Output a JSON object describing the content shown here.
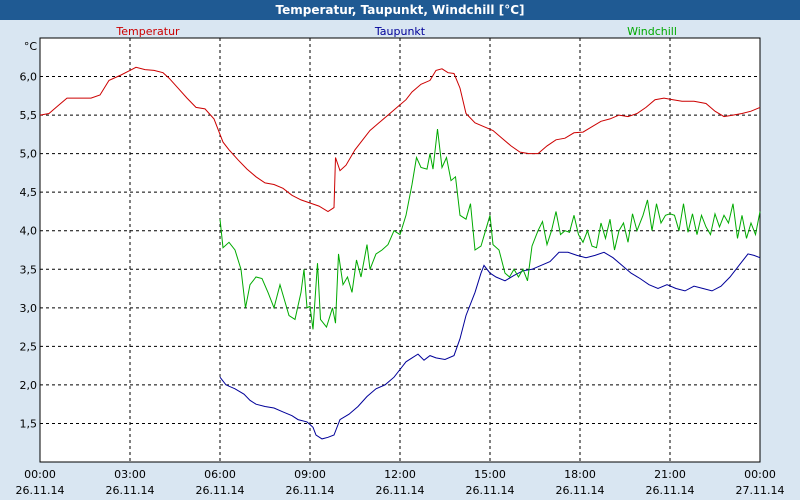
{
  "window": {
    "title": "Temperatur, Taupunkt, Windchill [°C]"
  },
  "colors": {
    "temperatur": "#cc0000",
    "taupunkt": "#000099",
    "windchill": "#00aa00",
    "background": "#d9e6f2",
    "plot": "#ffffff",
    "titlebar": "#1f5a93"
  },
  "chart_data": {
    "type": "line",
    "title": "Temperatur, Taupunkt, Windchill [°C]",
    "ylabel": "°C",
    "xlabel": "",
    "xlim": [
      0,
      24
    ],
    "ylim": [
      1.0,
      6.5
    ],
    "grid": true,
    "yticks": [
      1.5,
      2.0,
      2.5,
      3.0,
      3.5,
      4.0,
      4.5,
      5.0,
      5.5,
      6.0
    ],
    "ytick_labels": [
      "1,5",
      "2,0",
      "2,5",
      "3,0",
      "3,5",
      "4,0",
      "4,5",
      "5,0",
      "5,5",
      "6,0"
    ],
    "xticks": [
      {
        "x": 0,
        "time": "00:00",
        "date": "26.11.14"
      },
      {
        "x": 3,
        "time": "03:00",
        "date": "26.11.14"
      },
      {
        "x": 6,
        "time": "06:00",
        "date": "26.11.14"
      },
      {
        "x": 9,
        "time": "09:00",
        "date": "26.11.14"
      },
      {
        "x": 12,
        "time": "12:00",
        "date": "26.11.14"
      },
      {
        "x": 15,
        "time": "15:00",
        "date": "26.11.14"
      },
      {
        "x": 18,
        "time": "18:00",
        "date": "26.11.14"
      },
      {
        "x": 21,
        "time": "21:00",
        "date": "26.11.14"
      },
      {
        "x": 24,
        "time": "00:00",
        "date": "27.11.14"
      }
    ],
    "series": [
      {
        "name": "Temperatur",
        "color": "#cc0000",
        "points": [
          [
            0,
            5.5
          ],
          [
            0.3,
            5.52
          ],
          [
            0.6,
            5.62
          ],
          [
            0.9,
            5.72
          ],
          [
            1.3,
            5.72
          ],
          [
            1.7,
            5.72
          ],
          [
            2.0,
            5.76
          ],
          [
            2.3,
            5.95
          ],
          [
            2.7,
            6.02
          ],
          [
            3.0,
            6.08
          ],
          [
            3.2,
            6.12
          ],
          [
            3.5,
            6.09
          ],
          [
            3.8,
            6.08
          ],
          [
            4.1,
            6.05
          ],
          [
            4.3,
            5.98
          ],
          [
            4.6,
            5.85
          ],
          [
            4.9,
            5.72
          ],
          [
            5.2,
            5.6
          ],
          [
            5.5,
            5.58
          ],
          [
            5.8,
            5.45
          ],
          [
            6.1,
            5.15
          ],
          [
            6.3,
            5.05
          ],
          [
            6.6,
            4.92
          ],
          [
            6.9,
            4.8
          ],
          [
            7.2,
            4.7
          ],
          [
            7.5,
            4.62
          ],
          [
            7.8,
            4.6
          ],
          [
            8.1,
            4.55
          ],
          [
            8.4,
            4.46
          ],
          [
            8.7,
            4.4
          ],
          [
            9.0,
            4.36
          ],
          [
            9.3,
            4.32
          ],
          [
            9.6,
            4.25
          ],
          [
            9.8,
            4.3
          ],
          [
            9.85,
            4.95
          ],
          [
            10.0,
            4.78
          ],
          [
            10.2,
            4.85
          ],
          [
            10.5,
            5.05
          ],
          [
            10.8,
            5.2
          ],
          [
            11.0,
            5.3
          ],
          [
            11.3,
            5.4
          ],
          [
            11.6,
            5.5
          ],
          [
            11.9,
            5.6
          ],
          [
            12.2,
            5.7
          ],
          [
            12.4,
            5.8
          ],
          [
            12.7,
            5.9
          ],
          [
            13.0,
            5.95
          ],
          [
            13.2,
            6.08
          ],
          [
            13.4,
            6.1
          ],
          [
            13.6,
            6.05
          ],
          [
            13.8,
            6.04
          ],
          [
            14.0,
            5.85
          ],
          [
            14.2,
            5.52
          ],
          [
            14.5,
            5.4
          ],
          [
            14.8,
            5.35
          ],
          [
            15.1,
            5.3
          ],
          [
            15.4,
            5.2
          ],
          [
            15.7,
            5.1
          ],
          [
            16.0,
            5.02
          ],
          [
            16.3,
            5.0
          ],
          [
            16.6,
            5.0
          ],
          [
            16.9,
            5.1
          ],
          [
            17.2,
            5.18
          ],
          [
            17.5,
            5.2
          ],
          [
            17.8,
            5.27
          ],
          [
            18.1,
            5.28
          ],
          [
            18.4,
            5.35
          ],
          [
            18.7,
            5.42
          ],
          [
            19.0,
            5.45
          ],
          [
            19.3,
            5.5
          ],
          [
            19.6,
            5.48
          ],
          [
            19.9,
            5.52
          ],
          [
            20.2,
            5.6
          ],
          [
            20.5,
            5.7
          ],
          [
            20.8,
            5.72
          ],
          [
            21.1,
            5.7
          ],
          [
            21.4,
            5.68
          ],
          [
            21.8,
            5.68
          ],
          [
            22.2,
            5.65
          ],
          [
            22.5,
            5.55
          ],
          [
            22.8,
            5.48
          ],
          [
            23.1,
            5.5
          ],
          [
            23.4,
            5.52
          ],
          [
            23.7,
            5.55
          ],
          [
            24.0,
            5.6
          ]
        ]
      },
      {
        "name": "Taupunkt",
        "color": "#000099",
        "points": [
          [
            6.0,
            2.1
          ],
          [
            6.2,
            2.0
          ],
          [
            6.5,
            1.95
          ],
          [
            6.8,
            1.88
          ],
          [
            7.0,
            1.8
          ],
          [
            7.2,
            1.75
          ],
          [
            7.5,
            1.72
          ],
          [
            7.8,
            1.7
          ],
          [
            8.1,
            1.65
          ],
          [
            8.4,
            1.6
          ],
          [
            8.6,
            1.55
          ],
          [
            8.9,
            1.52
          ],
          [
            9.1,
            1.45
          ],
          [
            9.2,
            1.35
          ],
          [
            9.4,
            1.3
          ],
          [
            9.6,
            1.32
          ],
          [
            9.8,
            1.35
          ],
          [
            10.0,
            1.55
          ],
          [
            10.3,
            1.62
          ],
          [
            10.6,
            1.72
          ],
          [
            10.9,
            1.85
          ],
          [
            11.2,
            1.95
          ],
          [
            11.5,
            2.0
          ],
          [
            11.8,
            2.1
          ],
          [
            12.0,
            2.2
          ],
          [
            12.2,
            2.3
          ],
          [
            12.4,
            2.35
          ],
          [
            12.6,
            2.4
          ],
          [
            12.8,
            2.32
          ],
          [
            13.0,
            2.38
          ],
          [
            13.2,
            2.35
          ],
          [
            13.5,
            2.33
          ],
          [
            13.8,
            2.38
          ],
          [
            14.0,
            2.6
          ],
          [
            14.2,
            2.9
          ],
          [
            14.5,
            3.2
          ],
          [
            14.7,
            3.45
          ],
          [
            14.8,
            3.55
          ],
          [
            15.0,
            3.45
          ],
          [
            15.2,
            3.4
          ],
          [
            15.5,
            3.35
          ],
          [
            15.8,
            3.42
          ],
          [
            16.1,
            3.48
          ],
          [
            16.4,
            3.5
          ],
          [
            16.7,
            3.55
          ],
          [
            17.0,
            3.6
          ],
          [
            17.3,
            3.72
          ],
          [
            17.6,
            3.72
          ],
          [
            17.9,
            3.68
          ],
          [
            18.2,
            3.65
          ],
          [
            18.5,
            3.68
          ],
          [
            18.8,
            3.72
          ],
          [
            19.1,
            3.65
          ],
          [
            19.4,
            3.55
          ],
          [
            19.7,
            3.45
          ],
          [
            20.0,
            3.38
          ],
          [
            20.3,
            3.3
          ],
          [
            20.6,
            3.25
          ],
          [
            20.9,
            3.3
          ],
          [
            21.2,
            3.25
          ],
          [
            21.5,
            3.22
          ],
          [
            21.8,
            3.28
          ],
          [
            22.1,
            3.25
          ],
          [
            22.4,
            3.22
          ],
          [
            22.7,
            3.28
          ],
          [
            23.0,
            3.4
          ],
          [
            23.3,
            3.55
          ],
          [
            23.6,
            3.7
          ],
          [
            23.8,
            3.68
          ],
          [
            24.0,
            3.65
          ]
        ]
      },
      {
        "name": "Windchill",
        "color": "#00aa00",
        "points": [
          [
            6.0,
            4.15
          ],
          [
            6.1,
            3.78
          ],
          [
            6.3,
            3.85
          ],
          [
            6.5,
            3.75
          ],
          [
            6.7,
            3.5
          ],
          [
            6.85,
            3.0
          ],
          [
            7.0,
            3.3
          ],
          [
            7.2,
            3.4
          ],
          [
            7.4,
            3.38
          ],
          [
            7.6,
            3.2
          ],
          [
            7.8,
            3.0
          ],
          [
            8.0,
            3.3
          ],
          [
            8.15,
            3.1
          ],
          [
            8.3,
            2.9
          ],
          [
            8.5,
            2.85
          ],
          [
            8.7,
            3.2
          ],
          [
            8.8,
            3.5
          ],
          [
            8.9,
            3.0
          ],
          [
            9.0,
            3.02
          ],
          [
            9.1,
            2.72
          ],
          [
            9.25,
            3.58
          ],
          [
            9.35,
            2.85
          ],
          [
            9.55,
            2.75
          ],
          [
            9.75,
            3.0
          ],
          [
            9.85,
            2.8
          ],
          [
            9.95,
            3.7
          ],
          [
            10.1,
            3.3
          ],
          [
            10.25,
            3.4
          ],
          [
            10.4,
            3.2
          ],
          [
            10.55,
            3.62
          ],
          [
            10.7,
            3.4
          ],
          [
            10.9,
            3.82
          ],
          [
            11.0,
            3.5
          ],
          [
            11.2,
            3.7
          ],
          [
            11.4,
            3.75
          ],
          [
            11.6,
            3.82
          ],
          [
            11.8,
            4.0
          ],
          [
            12.0,
            3.95
          ],
          [
            12.2,
            4.2
          ],
          [
            12.4,
            4.6
          ],
          [
            12.55,
            4.95
          ],
          [
            12.7,
            4.82
          ],
          [
            12.9,
            4.8
          ],
          [
            13.0,
            5.0
          ],
          [
            13.1,
            4.8
          ],
          [
            13.25,
            5.32
          ],
          [
            13.4,
            4.82
          ],
          [
            13.55,
            4.95
          ],
          [
            13.7,
            4.65
          ],
          [
            13.85,
            4.7
          ],
          [
            14.0,
            4.2
          ],
          [
            14.2,
            4.15
          ],
          [
            14.35,
            4.35
          ],
          [
            14.5,
            3.75
          ],
          [
            14.7,
            3.8
          ],
          [
            14.85,
            4.0
          ],
          [
            15.0,
            4.2
          ],
          [
            15.1,
            3.82
          ],
          [
            15.3,
            3.75
          ],
          [
            15.5,
            3.45
          ],
          [
            15.65,
            3.4
          ],
          [
            15.8,
            3.5
          ],
          [
            15.95,
            3.4
          ],
          [
            16.1,
            3.5
          ],
          [
            16.25,
            3.35
          ],
          [
            16.4,
            3.8
          ],
          [
            16.6,
            4.0
          ],
          [
            16.75,
            4.12
          ],
          [
            16.9,
            3.82
          ],
          [
            17.05,
            4.0
          ],
          [
            17.2,
            4.25
          ],
          [
            17.35,
            3.95
          ],
          [
            17.5,
            4.0
          ],
          [
            17.65,
            3.98
          ],
          [
            17.8,
            4.2
          ],
          [
            17.95,
            3.95
          ],
          [
            18.1,
            3.85
          ],
          [
            18.25,
            4.0
          ],
          [
            18.4,
            3.8
          ],
          [
            18.55,
            3.78
          ],
          [
            18.7,
            4.1
          ],
          [
            18.85,
            3.9
          ],
          [
            19.0,
            4.15
          ],
          [
            19.15,
            3.75
          ],
          [
            19.3,
            4.0
          ],
          [
            19.45,
            4.1
          ],
          [
            19.6,
            3.85
          ],
          [
            19.75,
            4.22
          ],
          [
            19.9,
            4.0
          ],
          [
            20.1,
            4.2
          ],
          [
            20.25,
            4.4
          ],
          [
            20.4,
            4.0
          ],
          [
            20.55,
            4.35
          ],
          [
            20.7,
            4.1
          ],
          [
            20.85,
            4.2
          ],
          [
            21.0,
            4.22
          ],
          [
            21.15,
            4.2
          ],
          [
            21.3,
            4.0
          ],
          [
            21.45,
            4.35
          ],
          [
            21.6,
            3.98
          ],
          [
            21.75,
            4.22
          ],
          [
            21.9,
            3.95
          ],
          [
            22.05,
            4.2
          ],
          [
            22.2,
            4.05
          ],
          [
            22.35,
            3.95
          ],
          [
            22.5,
            4.22
          ],
          [
            22.65,
            4.05
          ],
          [
            22.8,
            4.2
          ],
          [
            22.95,
            4.1
          ],
          [
            23.1,
            4.35
          ],
          [
            23.25,
            3.9
          ],
          [
            23.4,
            4.2
          ],
          [
            23.55,
            3.9
          ],
          [
            23.7,
            4.1
          ],
          [
            23.85,
            3.95
          ],
          [
            24.0,
            4.25
          ]
        ]
      }
    ],
    "legend": "top"
  }
}
